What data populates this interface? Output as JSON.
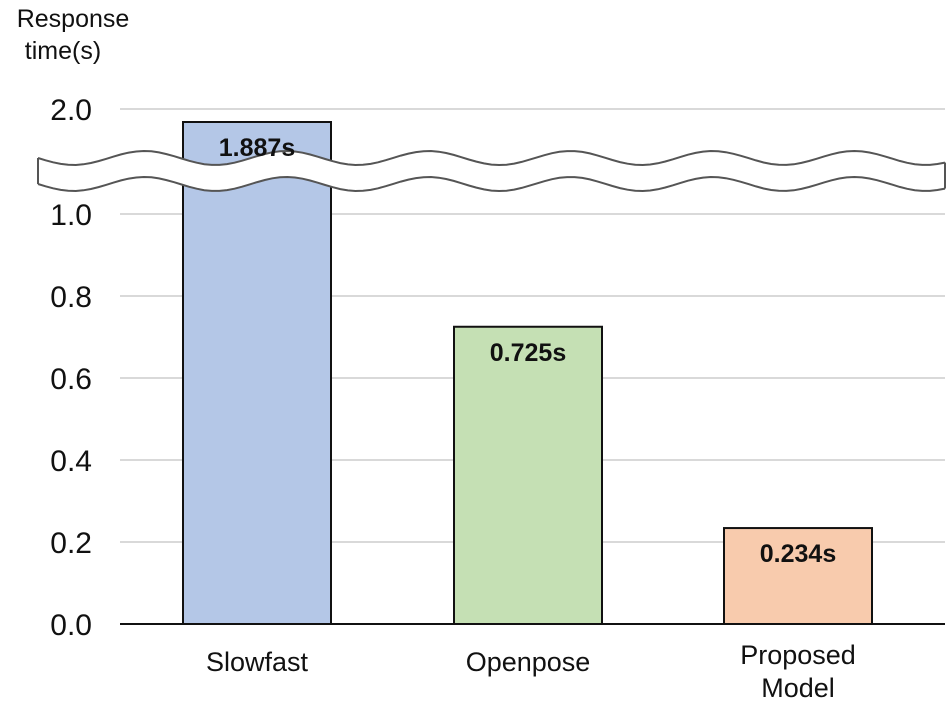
{
  "chart_data": {
    "type": "bar",
    "title": "",
    "xlabel": "",
    "ylabel_lines": [
      "Response",
      "time(s)"
    ],
    "categories": [
      {
        "lines": [
          "Slowfast"
        ]
      },
      {
        "lines": [
          "Openpose"
        ]
      },
      {
        "lines": [
          "Proposed",
          "Model"
        ]
      }
    ],
    "values": [
      1.887,
      0.725,
      0.234
    ],
    "value_labels": [
      "1.887s",
      "0.725s",
      "0.234s"
    ],
    "colors": [
      "#b4c7e7",
      "#c5e0b4",
      "#f8cbad"
    ],
    "ylim": [
      0,
      2.0
    ],
    "axis_break": [
      1.0,
      2.0
    ],
    "yticks": [
      {
        "value": 0.0,
        "label": "0.0"
      },
      {
        "value": 0.2,
        "label": "0.2"
      },
      {
        "value": 0.4,
        "label": "0.4"
      },
      {
        "value": 0.6,
        "label": "0.6"
      },
      {
        "value": 0.8,
        "label": "0.8"
      },
      {
        "value": 1.0,
        "label": "1.0"
      },
      {
        "value": 2.0,
        "label": "2.0"
      }
    ],
    "grid": true,
    "legend": "none"
  }
}
